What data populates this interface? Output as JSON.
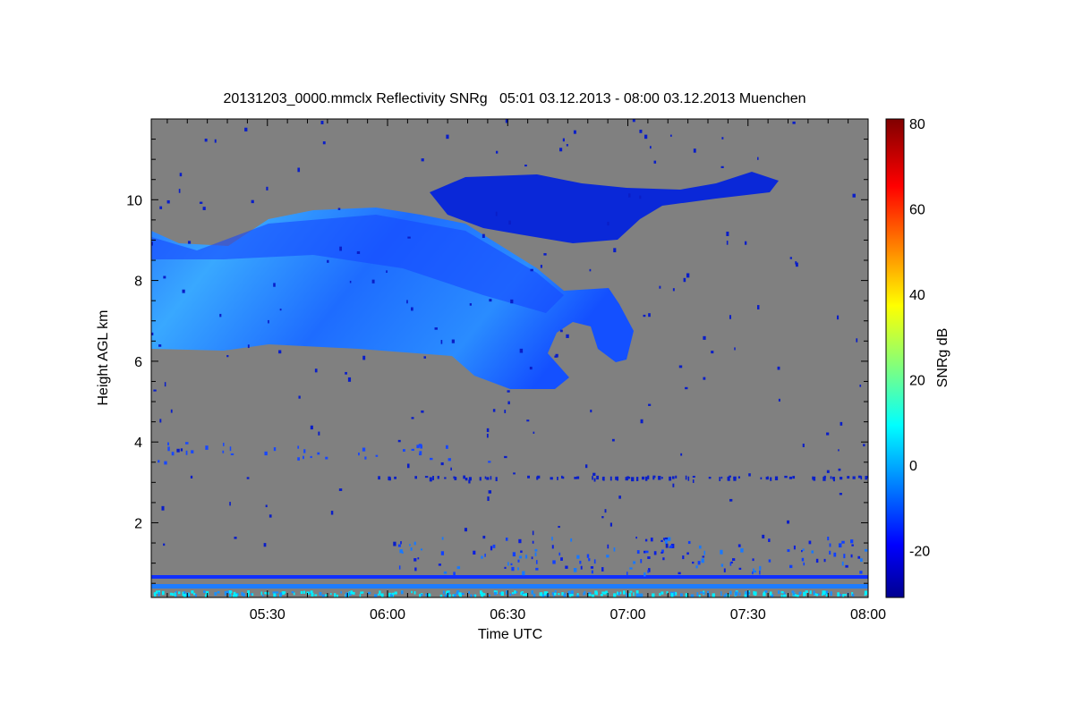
{
  "chart_data": {
    "type": "heatmap",
    "title": "20131203_0000.mmclx Reflectivity SNRg   05:01 03.12.2013 - 08:00 03.12.2013 Muenchen",
    "xlabel": "Time UTC",
    "ylabel": "Height AGL km",
    "colorbar_label": "SNRg dB",
    "x_range_minutes": [
      301,
      480
    ],
    "x_ticks": [
      {
        "label": "05:30",
        "minutes": 330
      },
      {
        "label": "06:00",
        "minutes": 360
      },
      {
        "label": "06:30",
        "minutes": 390
      },
      {
        "label": "07:00",
        "minutes": 420
      },
      {
        "label": "07:30",
        "minutes": 450
      },
      {
        "label": "08:00",
        "minutes": 480
      }
    ],
    "y_range_km": [
      0.15,
      12.0
    ],
    "y_ticks": [
      {
        "label": "2",
        "value": 2
      },
      {
        "label": "4",
        "value": 4
      },
      {
        "label": "6",
        "value": 6
      },
      {
        "label": "8",
        "value": 8
      },
      {
        "label": "10",
        "value": 10
      }
    ],
    "colorbar_range_db": [
      -31,
      81
    ],
    "colorbar_ticks": [
      {
        "label": "-20",
        "value": -20
      },
      {
        "label": "0",
        "value": 0
      },
      {
        "label": "20",
        "value": 20
      },
      {
        "label": "40",
        "value": 40
      },
      {
        "label": "60",
        "value": 60
      },
      {
        "label": "80",
        "value": 80
      }
    ],
    "colormap": "jet",
    "background_color": "#808080",
    "features": [
      {
        "name": "main cirrus layer",
        "time_start": "05:01",
        "time_end": "07:03",
        "height_km": [
          5.3,
          9.8
        ],
        "snr_db": [
          -15,
          8
        ]
      },
      {
        "name": "upper cloud layer",
        "time_start": "06:14",
        "time_end": "07:46",
        "height_km": [
          8.9,
          10.8
        ],
        "snr_db": [
          -25,
          -15
        ]
      },
      {
        "name": "near-surface clutter",
        "time_start": "05:01",
        "time_end": "08:00",
        "height_km": [
          0.15,
          0.7
        ],
        "snr_db": [
          -15,
          8
        ]
      }
    ]
  }
}
